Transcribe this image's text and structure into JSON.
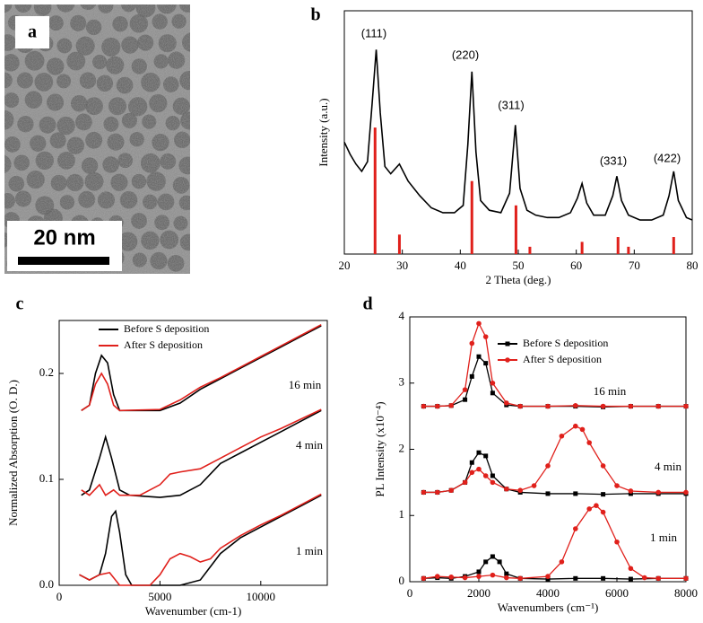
{
  "image_panel": {
    "label": "a",
    "scale_bar": "20 nm"
  },
  "chart_data": [
    {
      "type": "line",
      "label": "b",
      "xlabel": "2 Theta (deg.)",
      "ylabel": "Intensity (a.u.)",
      "xlim": [
        20,
        80
      ],
      "xticks": [
        20,
        30,
        40,
        50,
        60,
        70,
        80
      ],
      "ylim": [
        0,
        100
      ],
      "curve": {
        "color": "#000000",
        "x": [
          20,
          21,
          22,
          23,
          24,
          24.8,
          25.5,
          26.2,
          27,
          28,
          29.5,
          31,
          33,
          35,
          37,
          39,
          40.5,
          41.3,
          42,
          42.7,
          43.5,
          45,
          47,
          48.5,
          49.5,
          50.3,
          51.5,
          53,
          55,
          57,
          59,
          60.2,
          61,
          61.8,
          63,
          65,
          66.3,
          67,
          67.8,
          69,
          71,
          73,
          75,
          76,
          76.8,
          77.6,
          79,
          80
        ],
        "values": [
          46,
          41,
          37,
          34,
          38,
          62,
          84,
          58,
          36,
          33,
          37,
          30,
          24,
          19,
          17,
          17,
          20,
          45,
          75,
          42,
          22,
          18,
          17,
          25,
          53,
          27,
          18,
          16,
          15,
          15,
          17,
          23,
          29,
          21,
          16,
          16,
          24,
          32,
          22,
          16,
          14,
          14,
          16,
          24,
          34,
          22,
          15,
          14
        ]
      },
      "sticks": {
        "color": "#e0201b",
        "x": [
          25.3,
          29.5,
          42,
          49.6,
          52,
          61,
          67.2,
          69,
          76.8
        ],
        "values": [
          52,
          8,
          30,
          20,
          3,
          5,
          7,
          3,
          7
        ]
      },
      "annotations": [
        {
          "text": "(111)"
        },
        {
          "text": "(220)"
        },
        {
          "text": "(311)"
        },
        {
          "text": "(331)"
        },
        {
          "text": "(422)"
        }
      ]
    },
    {
      "type": "line",
      "label": "c",
      "xlabel": "Wavenumber (cm-1)",
      "ylabel": "Normalized Absorption (O. D.)",
      "xlim": [
        0,
        13300
      ],
      "xticks": [
        0,
        5000,
        10000
      ],
      "ylim": [
        0,
        0.25
      ],
      "yticks": [
        {
          "value": 0,
          "label": "0.0"
        },
        0.1,
        0.2
      ],
      "legend": "upper left",
      "series": [
        {
          "name": "Before S deposition",
          "color": "#000000",
          "traces": [
            {
              "x": [
                1000,
                1500,
                2000,
                2300,
                2600,
                2800,
                3000,
                3300,
                3600,
                5000,
                6000,
                7000,
                8000,
                9000,
                10000,
                11000,
                12000,
                13000
              ],
              "values": [
                0.01,
                0.005,
                0.01,
                0.03,
                0.065,
                0.07,
                0.05,
                0.01,
                0.0,
                0.0,
                0.0,
                0.005,
                0.03,
                0.045,
                0.055,
                0.065,
                0.075,
                0.085
              ]
            },
            {
              "x": [
                1100,
                1500,
                2000,
                2300,
                2600,
                3000,
                3500,
                5000,
                6000,
                7000,
                8000,
                9000,
                10000,
                11000,
                12000,
                13000
              ],
              "values": [
                0.085,
                0.09,
                0.12,
                0.14,
                0.12,
                0.09,
                0.085,
                0.083,
                0.085,
                0.095,
                0.115,
                0.125,
                0.135,
                0.145,
                0.155,
                0.165
              ]
            },
            {
              "x": [
                1100,
                1500,
                1800,
                2100,
                2400,
                2700,
                3000,
                5000,
                6000,
                7000,
                8000,
                9000,
                10000,
                11000,
                12000,
                13000
              ],
              "values": [
                0.165,
                0.17,
                0.2,
                0.217,
                0.21,
                0.18,
                0.165,
                0.165,
                0.172,
                0.185,
                0.195,
                0.205,
                0.215,
                0.225,
                0.235,
                0.245
              ]
            }
          ]
        },
        {
          "name": "After S deposition",
          "color": "#e0201b",
          "traces": [
            {
              "x": [
                1000,
                1500,
                2000,
                2500,
                3000,
                4500,
                5000,
                5500,
                6000,
                6500,
                7000,
                7500,
                8000,
                9000,
                10000,
                11000,
                12000,
                13000
              ],
              "values": [
                0.01,
                0.005,
                0.01,
                0.012,
                0.0,
                0.0,
                0.01,
                0.025,
                0.03,
                0.027,
                0.022,
                0.025,
                0.035,
                0.047,
                0.057,
                0.066,
                0.076,
                0.086
              ]
            },
            {
              "x": [
                1100,
                1500,
                2000,
                2300,
                2700,
                3000,
                4000,
                5000,
                5500,
                6000,
                7000,
                8000,
                9000,
                10000,
                11000,
                12000,
                13000
              ],
              "values": [
                0.09,
                0.085,
                0.095,
                0.085,
                0.09,
                0.085,
                0.085,
                0.095,
                0.105,
                0.107,
                0.11,
                0.12,
                0.13,
                0.14,
                0.148,
                0.157,
                0.166
              ]
            },
            {
              "x": [
                1100,
                1500,
                1800,
                2100,
                2400,
                2700,
                3000,
                5000,
                6000,
                7000,
                8000,
                9000,
                10000,
                11000,
                12000,
                13000
              ],
              "values": [
                0.165,
                0.17,
                0.19,
                0.2,
                0.19,
                0.17,
                0.165,
                0.166,
                0.175,
                0.187,
                0.196,
                0.206,
                0.216,
                0.226,
                0.236,
                0.246
              ]
            }
          ]
        }
      ],
      "annotations": [
        {
          "text": "16 min"
        },
        {
          "text": "4 min"
        },
        {
          "text": "1 min"
        }
      ]
    },
    {
      "type": "line",
      "label": "d",
      "xlabel": "Wavenumbers (cm⁻¹)",
      "ylabel": "PL Intensity (x10⁻⁴)",
      "xlim": [
        0,
        8000
      ],
      "xticks": [
        0,
        2000,
        4000,
        6000,
        8000
      ],
      "ylim": [
        0,
        4
      ],
      "yticks": [
        0,
        1,
        2,
        3,
        4
      ],
      "legend": "upper right",
      "series": [
        {
          "name": "Before S deposition",
          "color": "#000000",
          "marker": "square",
          "traces": [
            {
              "x": [
                400,
                800,
                1200,
                1600,
                1800,
                2000,
                2200,
                2400,
                2800,
                3200,
                4000,
                4800,
                5600,
                6400,
                7200,
                8000
              ],
              "values": [
                2.65,
                2.65,
                2.66,
                2.75,
                3.1,
                3.4,
                3.3,
                2.85,
                2.67,
                2.65,
                2.65,
                2.65,
                2.64,
                2.65,
                2.65,
                2.65
              ]
            },
            {
              "x": [
                400,
                800,
                1200,
                1600,
                1800,
                2000,
                2200,
                2400,
                2800,
                3200,
                4000,
                4800,
                5600,
                6400,
                7200,
                8000
              ],
              "values": [
                1.35,
                1.35,
                1.38,
                1.5,
                1.8,
                1.95,
                1.9,
                1.6,
                1.4,
                1.35,
                1.33,
                1.33,
                1.32,
                1.33,
                1.33,
                1.33
              ]
            },
            {
              "x": [
                400,
                800,
                1200,
                1600,
                2000,
                2200,
                2400,
                2600,
                2800,
                3200,
                4000,
                4800,
                5600,
                6400,
                7200,
                8000
              ],
              "values": [
                0.05,
                0.06,
                0.05,
                0.08,
                0.15,
                0.3,
                0.38,
                0.3,
                0.12,
                0.05,
                0.04,
                0.05,
                0.05,
                0.04,
                0.05,
                0.05
              ]
            }
          ]
        },
        {
          "name": "After S deposition",
          "color": "#e0201b",
          "marker": "circle",
          "traces": [
            {
              "x": [
                400,
                800,
                1200,
                1600,
                1800,
                2000,
                2200,
                2400,
                2800,
                3200,
                4000,
                4800,
                5600,
                6400,
                7200,
                8000
              ],
              "values": [
                2.65,
                2.65,
                2.66,
                2.9,
                3.6,
                3.9,
                3.7,
                3.0,
                2.7,
                2.65,
                2.65,
                2.66,
                2.65,
                2.65,
                2.65,
                2.65
              ]
            },
            {
              "x": [
                400,
                800,
                1200,
                1600,
                1800,
                2000,
                2200,
                2400,
                2800,
                3200,
                3600,
                4000,
                4400,
                4800,
                5000,
                5200,
                5600,
                6000,
                6400,
                7200,
                8000
              ],
              "values": [
                1.35,
                1.35,
                1.38,
                1.5,
                1.65,
                1.7,
                1.6,
                1.5,
                1.4,
                1.38,
                1.45,
                1.75,
                2.2,
                2.35,
                2.3,
                2.1,
                1.75,
                1.45,
                1.37,
                1.35,
                1.35
              ]
            },
            {
              "x": [
                400,
                800,
                1200,
                1600,
                2000,
                2400,
                2800,
                3200,
                4000,
                4400,
                4800,
                5200,
                5400,
                5600,
                6000,
                6400,
                6800,
                7200,
                8000
              ],
              "values": [
                0.05,
                0.08,
                0.07,
                0.06,
                0.08,
                0.1,
                0.06,
                0.05,
                0.08,
                0.3,
                0.8,
                1.1,
                1.15,
                1.05,
                0.6,
                0.2,
                0.06,
                0.05,
                0.05
              ]
            }
          ]
        }
      ],
      "annotations": [
        {
          "text": "16 min"
        },
        {
          "text": "4 min"
        },
        {
          "text": "1 min"
        }
      ]
    }
  ]
}
